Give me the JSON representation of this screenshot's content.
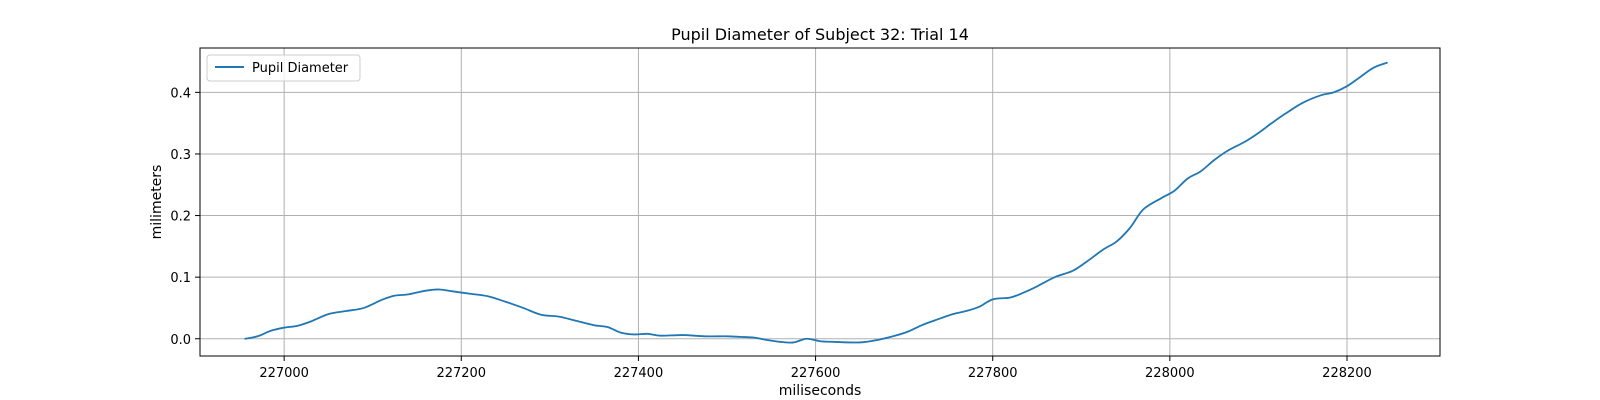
{
  "chart_data": {
    "type": "line",
    "title": "Pupil Diameter of Subject 32: Trial 14",
    "xlabel": "miliseconds",
    "ylabel": "milimeters",
    "xlim": [
      226905,
      228305
    ],
    "ylim": [
      -0.028,
      0.472
    ],
    "xticks": [
      227000,
      227200,
      227400,
      227600,
      227800,
      228000,
      228200
    ],
    "yticks": [
      0.0,
      0.1,
      0.2,
      0.3,
      0.4
    ],
    "ytick_labels": [
      "0.0",
      "0.1",
      "0.2",
      "0.3",
      "0.4"
    ],
    "grid": true,
    "legend": {
      "position": "upper-left",
      "entries": [
        "Pupil Diameter"
      ]
    },
    "series": [
      {
        "name": "Pupil Diameter",
        "color": "#1f77b4",
        "x": [
          226956,
          226970,
          226985,
          227000,
          227015,
          227030,
          227050,
          227070,
          227090,
          227110,
          227125,
          227140,
          227160,
          227175,
          227190,
          227210,
          227230,
          227250,
          227270,
          227290,
          227310,
          227330,
          227350,
          227365,
          227380,
          227395,
          227410,
          227425,
          227450,
          227475,
          227500,
          227515,
          227530,
          227545,
          227560,
          227575,
          227590,
          227605,
          227620,
          227650,
          227670,
          227690,
          227705,
          227720,
          227735,
          227755,
          227770,
          227785,
          227800,
          227820,
          227835,
          227850,
          227870,
          227890,
          227905,
          227925,
          227940,
          227955,
          227970,
          227990,
          228005,
          228020,
          228035,
          228050,
          228065,
          228085,
          228100,
          228115,
          228130,
          228150,
          228170,
          228185,
          228200,
          228215,
          228230,
          228245
        ],
        "y": [
          0.0,
          0.004,
          0.013,
          0.018,
          0.021,
          0.028,
          0.04,
          0.045,
          0.05,
          0.063,
          0.07,
          0.072,
          0.078,
          0.08,
          0.077,
          0.073,
          0.069,
          0.06,
          0.05,
          0.039,
          0.036,
          0.029,
          0.022,
          0.019,
          0.01,
          0.007,
          0.008,
          0.005,
          0.006,
          0.004,
          0.004,
          0.003,
          0.002,
          -0.002,
          -0.005,
          -0.006,
          0.0,
          -0.004,
          -0.005,
          -0.006,
          -0.002,
          0.005,
          0.012,
          0.022,
          0.03,
          0.04,
          0.045,
          0.052,
          0.064,
          0.067,
          0.075,
          0.085,
          0.1,
          0.11,
          0.124,
          0.145,
          0.158,
          0.18,
          0.21,
          0.228,
          0.24,
          0.26,
          0.272,
          0.29,
          0.305,
          0.32,
          0.334,
          0.35,
          0.365,
          0.383,
          0.395,
          0.4,
          0.41,
          0.425,
          0.44,
          0.448
        ]
      }
    ]
  }
}
